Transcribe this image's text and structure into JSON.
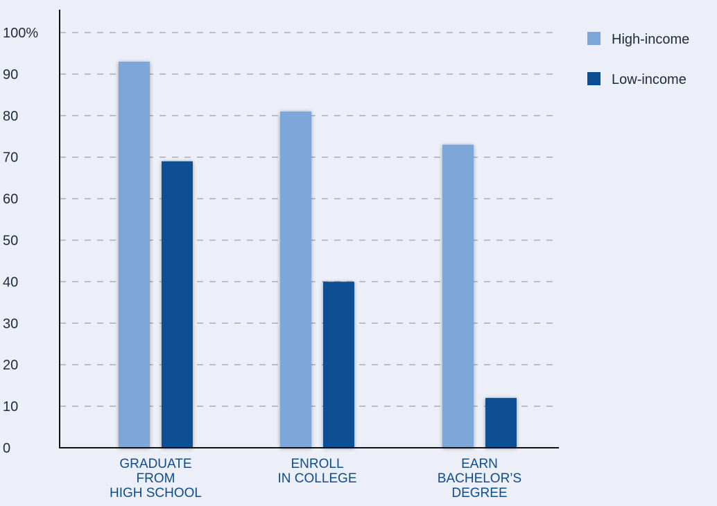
{
  "chart_data": {
    "type": "bar",
    "categories": [
      [
        "GRADUATE",
        "FROM",
        "HIGH SCHOOL"
      ],
      [
        "ENROLL",
        "IN COLLEGE"
      ],
      [
        "EARN",
        "BACHELOR’S",
        "DEGREE"
      ]
    ],
    "series": [
      {
        "name": "High-income",
        "color": "#7da7d9",
        "values": [
          93,
          81,
          73
        ]
      },
      {
        "name": "Low-income",
        "color": "#0a4f92",
        "values": [
          69,
          40,
          12
        ]
      }
    ],
    "yticks": [
      "0",
      "10",
      "20",
      "30",
      "40",
      "50",
      "60",
      "70",
      "80",
      "90",
      "100%"
    ],
    "ylim": [
      0,
      100
    ],
    "grid": true,
    "legend_position": "top-right",
    "colors": {
      "background": "#eceef8",
      "gridline": "#a9adb6",
      "axis": "#111111",
      "category_text": "#0e4d8c"
    }
  }
}
